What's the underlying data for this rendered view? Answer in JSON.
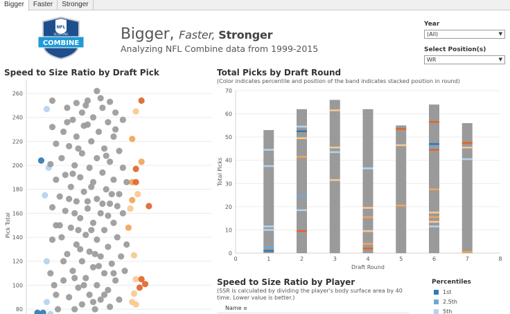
{
  "tabs": [
    {
      "label": "Bigger",
      "active": true
    },
    {
      "label": "Faster",
      "active": false
    },
    {
      "label": "Stronger",
      "active": false
    }
  ],
  "logo": {
    "top_text": "NFL",
    "band_text": "SCOUTING",
    "main_text": "COMBINE"
  },
  "header": {
    "title_part1": "Bigger, ",
    "title_part2": "Faster, ",
    "title_part3": "Stronger",
    "subtitle": "Analyzing NFL Combine data from 1999-2015"
  },
  "filters": {
    "year": {
      "label": "Year",
      "value": "(All)"
    },
    "position": {
      "label": "Select Position(s)",
      "value": "WR"
    }
  },
  "scatter_section": {
    "title": "Speed to Size Ratio by Draft Pick"
  },
  "bars_section": {
    "title": "Total Picks by Draft Round",
    "subtitle": "(Color indicates percentile and position of the band indicates stacked position in round)"
  },
  "player_section": {
    "title": "Speed to Size Ratio by Player",
    "subtitle_line1": "(SSR is calculated by dividing the player's body surface area by 40",
    "subtitle_line2": "time. Lower value is better.)",
    "name_header": "Name"
  },
  "legend": {
    "title": "Percentiles",
    "items": [
      {
        "label": "1st",
        "color": "#2f7ab5"
      },
      {
        "label": "2.5th",
        "color": "#6ea8d8"
      },
      {
        "label": "5th",
        "color": "#b5d3ee"
      }
    ]
  },
  "colors": {
    "gray": "#9a9a9a",
    "blue1": "#2f7ab5",
    "blue2": "#6ea8d8",
    "blue3": "#b5d3ee",
    "orange1": "#e0662a",
    "orange2": "#f2a45a",
    "orange3": "#f8c890"
  },
  "chart_data": [
    {
      "type": "bar",
      "title": "Total Picks by Draft Round",
      "xlabel": "Draft Round",
      "ylabel": "Total Picks",
      "categories": [
        1,
        2,
        3,
        4,
        5,
        6,
        7
      ],
      "values": [
        53,
        62,
        66,
        62,
        55,
        64,
        56
      ],
      "xlim": [
        0,
        8
      ],
      "ylim": [
        0,
        70
      ],
      "xticks": [
        0,
        1,
        2,
        3,
        4,
        5,
        6,
        7,
        8
      ],
      "yticks": [
        0,
        10,
        20,
        30,
        40,
        50,
        60,
        70
      ],
      "grid": true,
      "bands": [
        {
          "round": 1,
          "pos": 44.5,
          "level": "blue3"
        },
        {
          "round": 1,
          "pos": 37.5,
          "level": "blue3"
        },
        {
          "round": 1,
          "pos": 11.5,
          "level": "blue3"
        },
        {
          "round": 1,
          "pos": 10,
          "level": "blue3"
        },
        {
          "round": 1,
          "pos": 2.5,
          "level": "blue2"
        },
        {
          "round": 1,
          "pos": 1,
          "level": "blue1"
        },
        {
          "round": 2,
          "pos": 54.5,
          "level": "blue3"
        },
        {
          "round": 2,
          "pos": 52.5,
          "level": "blue1"
        },
        {
          "round": 2,
          "pos": 49.5,
          "level": "orange3"
        },
        {
          "round": 2,
          "pos": 41.5,
          "level": "orange2"
        },
        {
          "round": 2,
          "pos": 24.5,
          "level": "blue2"
        },
        {
          "round": 2,
          "pos": 18.5,
          "level": "blue3"
        },
        {
          "round": 2,
          "pos": 9.5,
          "level": "orange1"
        },
        {
          "round": 3,
          "pos": 61.5,
          "level": "orange3"
        },
        {
          "round": 3,
          "pos": 45.5,
          "level": "orange3"
        },
        {
          "round": 3,
          "pos": 43.5,
          "level": "blue3"
        },
        {
          "round": 3,
          "pos": 31.5,
          "level": "orange3"
        },
        {
          "round": 4,
          "pos": 36.5,
          "level": "blue3"
        },
        {
          "round": 4,
          "pos": 19.5,
          "level": "orange3"
        },
        {
          "round": 4,
          "pos": 15.5,
          "level": "orange2"
        },
        {
          "round": 4,
          "pos": 9.5,
          "level": "orange3"
        },
        {
          "round": 4,
          "pos": 4,
          "level": "orange2"
        },
        {
          "round": 4,
          "pos": 2,
          "level": "orange1"
        },
        {
          "round": 5,
          "pos": 53.5,
          "level": "orange1"
        },
        {
          "round": 5,
          "pos": 46.5,
          "level": "orange3"
        },
        {
          "round": 5,
          "pos": 20.5,
          "level": "orange2"
        },
        {
          "round": 6,
          "pos": 56.5,
          "level": "orange1"
        },
        {
          "round": 6,
          "pos": 47,
          "level": "blue1"
        },
        {
          "round": 6,
          "pos": 45.5,
          "level": "blue2"
        },
        {
          "round": 6,
          "pos": 44.5,
          "level": "orange1"
        },
        {
          "round": 6,
          "pos": 27.5,
          "level": "orange2"
        },
        {
          "round": 6,
          "pos": 17.5,
          "level": "orange3"
        },
        {
          "round": 6,
          "pos": 15.5,
          "level": "orange2"
        },
        {
          "round": 6,
          "pos": 13.5,
          "level": "orange3"
        },
        {
          "round": 6,
          "pos": 11.5,
          "level": "blue3"
        },
        {
          "round": 7,
          "pos": 47.5,
          "level": "orange1"
        },
        {
          "round": 7,
          "pos": 45.5,
          "level": "orange3"
        },
        {
          "round": 7,
          "pos": 40.5,
          "level": "blue3"
        },
        {
          "round": 7,
          "pos": 0.5,
          "level": "orange2"
        }
      ]
    },
    {
      "type": "scatter",
      "title": "Speed to Size Ratio by Draft Pick",
      "ylabel": "Pick Total",
      "yticks": [
        80,
        100,
        120,
        140,
        160,
        180,
        200,
        220,
        240,
        260
      ],
      "ylim": [
        76,
        271
      ],
      "xlim": [
        0,
        100
      ],
      "grid": true,
      "points": [
        {
          "x": 8,
          "y": 204,
          "c": "blue1"
        },
        {
          "x": 11,
          "y": 247,
          "c": "blue3"
        },
        {
          "x": 12,
          "y": 198,
          "c": "blue3"
        },
        {
          "x": 10,
          "y": 175,
          "c": "blue3"
        },
        {
          "x": 11,
          "y": 120,
          "c": "blue3"
        },
        {
          "x": 11,
          "y": 86,
          "c": "blue3"
        },
        {
          "x": 14,
          "y": 254,
          "c": "gray"
        },
        {
          "x": 16,
          "y": 218,
          "c": "gray"
        },
        {
          "x": 14,
          "y": 232,
          "c": "gray"
        },
        {
          "x": 13,
          "y": 201,
          "c": "gray"
        },
        {
          "x": 16,
          "y": 188,
          "c": "gray"
        },
        {
          "x": 14,
          "y": 165,
          "c": "gray"
        },
        {
          "x": 16,
          "y": 150,
          "c": "gray"
        },
        {
          "x": 14,
          "y": 138,
          "c": "gray"
        },
        {
          "x": 13,
          "y": 110,
          "c": "gray"
        },
        {
          "x": 15,
          "y": 100,
          "c": "gray"
        },
        {
          "x": 16,
          "y": 92,
          "c": "gray"
        },
        {
          "x": 62,
          "y": 254,
          "c": "orange1"
        },
        {
          "x": 59,
          "y": 245,
          "c": "orange3"
        },
        {
          "x": 57,
          "y": 222,
          "c": "orange2"
        },
        {
          "x": 62,
          "y": 203,
          "c": "orange2"
        },
        {
          "x": 59,
          "y": 197,
          "c": "orange1"
        },
        {
          "x": 57,
          "y": 186,
          "c": "orange2"
        },
        {
          "x": 59,
          "y": 186,
          "c": "orange1"
        },
        {
          "x": 60,
          "y": 176,
          "c": "orange3"
        },
        {
          "x": 57,
          "y": 171,
          "c": "orange2"
        },
        {
          "x": 66,
          "y": 166,
          "c": "orange1"
        },
        {
          "x": 56,
          "y": 164,
          "c": "orange3"
        },
        {
          "x": 55,
          "y": 148,
          "c": "orange2"
        },
        {
          "x": 58,
          "y": 125,
          "c": "orange3"
        },
        {
          "x": 59,
          "y": 105,
          "c": "orange3"
        },
        {
          "x": 62,
          "y": 105,
          "c": "orange1"
        },
        {
          "x": 64,
          "y": 101,
          "c": "orange1"
        },
        {
          "x": 61,
          "y": 98,
          "c": "orange1"
        },
        {
          "x": 58,
          "y": 93,
          "c": "orange3"
        },
        {
          "x": 57,
          "y": 86,
          "c": "orange3"
        },
        {
          "x": 59,
          "y": 84,
          "c": "orange3"
        },
        {
          "x": 38,
          "y": 262,
          "c": "gray"
        },
        {
          "x": 33,
          "y": 254,
          "c": "gray"
        },
        {
          "x": 27,
          "y": 252,
          "c": "gray"
        },
        {
          "x": 45,
          "y": 253,
          "c": "gray"
        },
        {
          "x": 30,
          "y": 244,
          "c": "gray"
        },
        {
          "x": 22,
          "y": 248,
          "c": "gray"
        },
        {
          "x": 41,
          "y": 248,
          "c": "gray"
        },
        {
          "x": 36,
          "y": 240,
          "c": "gray"
        },
        {
          "x": 48,
          "y": 244,
          "c": "gray"
        },
        {
          "x": 25,
          "y": 238,
          "c": "gray"
        },
        {
          "x": 44,
          "y": 236,
          "c": "gray"
        },
        {
          "x": 52,
          "y": 238,
          "c": "gray"
        },
        {
          "x": 31,
          "y": 233,
          "c": "gray"
        },
        {
          "x": 20,
          "y": 228,
          "c": "gray"
        },
        {
          "x": 39,
          "y": 228,
          "c": "gray"
        },
        {
          "x": 27,
          "y": 224,
          "c": "gray"
        },
        {
          "x": 47,
          "y": 224,
          "c": "gray"
        },
        {
          "x": 35,
          "y": 220,
          "c": "gray"
        },
        {
          "x": 23,
          "y": 216,
          "c": "gray"
        },
        {
          "x": 42,
          "y": 214,
          "c": "gray"
        },
        {
          "x": 50,
          "y": 212,
          "c": "gray"
        },
        {
          "x": 30,
          "y": 210,
          "c": "gray"
        },
        {
          "x": 38,
          "y": 206,
          "c": "gray"
        },
        {
          "x": 19,
          "y": 206,
          "c": "gray"
        },
        {
          "x": 45,
          "y": 203,
          "c": "gray"
        },
        {
          "x": 26,
          "y": 200,
          "c": "gray"
        },
        {
          "x": 34,
          "y": 198,
          "c": "gray"
        },
        {
          "x": 52,
          "y": 198,
          "c": "gray"
        },
        {
          "x": 41,
          "y": 194,
          "c": "gray"
        },
        {
          "x": 21,
          "y": 192,
          "c": "gray"
        },
        {
          "x": 29,
          "y": 190,
          "c": "gray"
        },
        {
          "x": 47,
          "y": 188,
          "c": "gray"
        },
        {
          "x": 36,
          "y": 186,
          "c": "gray"
        },
        {
          "x": 24,
          "y": 182,
          "c": "gray"
        },
        {
          "x": 43,
          "y": 180,
          "c": "gray"
        },
        {
          "x": 31,
          "y": 178,
          "c": "gray"
        },
        {
          "x": 50,
          "y": 176,
          "c": "gray"
        },
        {
          "x": 18,
          "y": 174,
          "c": "gray"
        },
        {
          "x": 38,
          "y": 172,
          "c": "gray"
        },
        {
          "x": 27,
          "y": 170,
          "c": "gray"
        },
        {
          "x": 45,
          "y": 168,
          "c": "gray"
        },
        {
          "x": 33,
          "y": 164,
          "c": "gray"
        },
        {
          "x": 21,
          "y": 162,
          "c": "gray"
        },
        {
          "x": 40,
          "y": 160,
          "c": "gray"
        },
        {
          "x": 52,
          "y": 160,
          "c": "gray"
        },
        {
          "x": 29,
          "y": 156,
          "c": "gray"
        },
        {
          "x": 36,
          "y": 152,
          "c": "gray"
        },
        {
          "x": 47,
          "y": 152,
          "c": "gray"
        },
        {
          "x": 24,
          "y": 148,
          "c": "gray"
        },
        {
          "x": 42,
          "y": 146,
          "c": "gray"
        },
        {
          "x": 32,
          "y": 142,
          "c": "gray"
        },
        {
          "x": 19,
          "y": 140,
          "c": "gray"
        },
        {
          "x": 49,
          "y": 140,
          "c": "gray"
        },
        {
          "x": 38,
          "y": 138,
          "c": "gray"
        },
        {
          "x": 27,
          "y": 134,
          "c": "gray"
        },
        {
          "x": 44,
          "y": 132,
          "c": "gray"
        },
        {
          "x": 34,
          "y": 128,
          "c": "gray"
        },
        {
          "x": 22,
          "y": 126,
          "c": "gray"
        },
        {
          "x": 40,
          "y": 124,
          "c": "gray"
        },
        {
          "x": 51,
          "y": 124,
          "c": "gray"
        },
        {
          "x": 30,
          "y": 120,
          "c": "gray"
        },
        {
          "x": 46,
          "y": 118,
          "c": "gray"
        },
        {
          "x": 36,
          "y": 115,
          "c": "gray"
        },
        {
          "x": 25,
          "y": 112,
          "c": "gray"
        },
        {
          "x": 42,
          "y": 110,
          "c": "gray"
        },
        {
          "x": 32,
          "y": 106,
          "c": "gray"
        },
        {
          "x": 20,
          "y": 104,
          "c": "gray"
        },
        {
          "x": 48,
          "y": 104,
          "c": "gray"
        },
        {
          "x": 38,
          "y": 100,
          "c": "gray"
        },
        {
          "x": 28,
          "y": 98,
          "c": "gray"
        },
        {
          "x": 44,
          "y": 96,
          "c": "gray"
        },
        {
          "x": 34,
          "y": 92,
          "c": "gray"
        },
        {
          "x": 23,
          "y": 90,
          "c": "gray"
        },
        {
          "x": 40,
          "y": 88,
          "c": "gray"
        },
        {
          "x": 50,
          "y": 88,
          "c": "gray"
        },
        {
          "x": 30,
          "y": 84,
          "c": "gray"
        },
        {
          "x": 37,
          "y": 80,
          "c": "gray"
        },
        {
          "x": 26,
          "y": 80,
          "c": "gray"
        },
        {
          "x": 45,
          "y": 82,
          "c": "gray"
        },
        {
          "x": 33,
          "y": 234,
          "c": "gray"
        },
        {
          "x": 28,
          "y": 214,
          "c": "gray"
        },
        {
          "x": 48,
          "y": 230,
          "c": "gray"
        },
        {
          "x": 43,
          "y": 208,
          "c": "gray"
        },
        {
          "x": 25,
          "y": 193,
          "c": "gray"
        },
        {
          "x": 35,
          "y": 182,
          "c": "gray"
        },
        {
          "x": 41,
          "y": 168,
          "c": "gray"
        },
        {
          "x": 26,
          "y": 160,
          "c": "gray"
        },
        {
          "x": 35,
          "y": 146,
          "c": "gray"
        },
        {
          "x": 29,
          "y": 130,
          "c": "gray"
        },
        {
          "x": 39,
          "y": 116,
          "c": "gray"
        },
        {
          "x": 31,
          "y": 100,
          "c": "gray"
        },
        {
          "x": 36,
          "y": 86,
          "c": "gray"
        },
        {
          "x": 42,
          "y": 92,
          "c": "gray"
        },
        {
          "x": 20,
          "y": 120,
          "c": "gray"
        },
        {
          "x": 18,
          "y": 150,
          "c": "gray"
        },
        {
          "x": 22,
          "y": 236,
          "c": "gray"
        },
        {
          "x": 54,
          "y": 186,
          "c": "gray"
        },
        {
          "x": 54,
          "y": 134,
          "c": "gray"
        },
        {
          "x": 53,
          "y": 112,
          "c": "gray"
        },
        {
          "x": 17,
          "y": 80,
          "c": "gray"
        },
        {
          "x": 32,
          "y": 250,
          "c": "gray"
        },
        {
          "x": 40,
          "y": 256,
          "c": "gray"
        },
        {
          "x": 46,
          "y": 176,
          "c": "gray"
        },
        {
          "x": 33,
          "y": 170,
          "c": "gray"
        },
        {
          "x": 28,
          "y": 146,
          "c": "gray"
        },
        {
          "x": 44,
          "y": 158,
          "c": "gray"
        },
        {
          "x": 23,
          "y": 172,
          "c": "gray"
        },
        {
          "x": 49,
          "y": 166,
          "c": "gray"
        },
        {
          "x": 37,
          "y": 126,
          "c": "gray"
        },
        {
          "x": 26,
          "y": 106,
          "c": "gray"
        },
        {
          "x": 47,
          "y": 110,
          "c": "gray"
        },
        {
          "x": 6,
          "y": 77,
          "c": "blue1"
        },
        {
          "x": 9,
          "y": 77,
          "c": "blue1"
        },
        {
          "x": 13,
          "y": 76,
          "c": "blue3"
        }
      ]
    }
  ]
}
